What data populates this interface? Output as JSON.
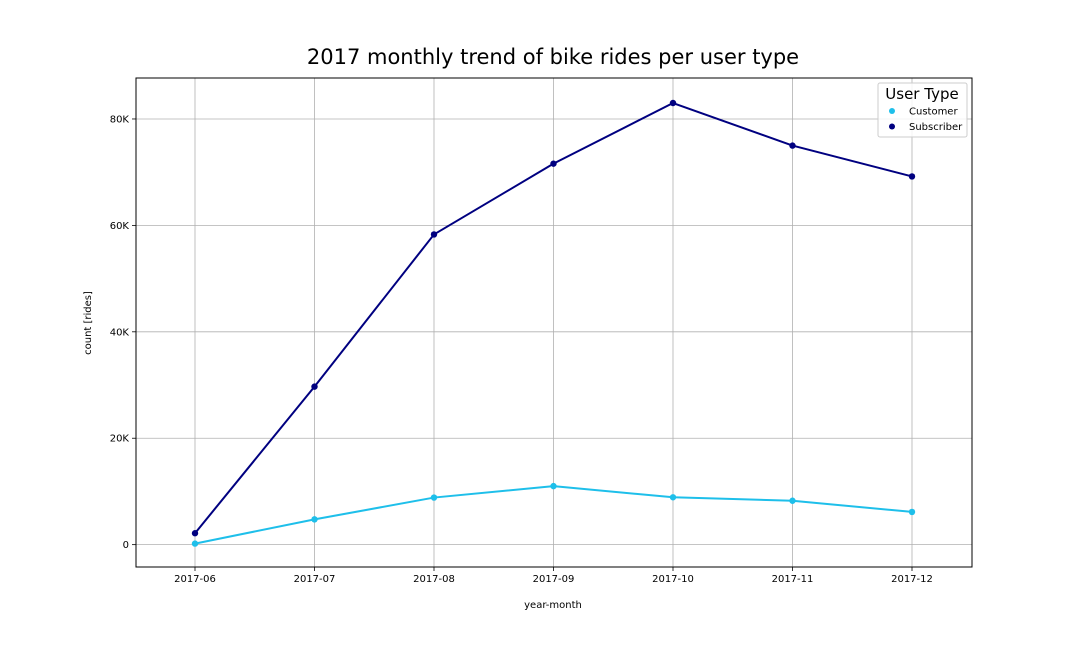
{
  "chart_data": {
    "type": "line",
    "title": "2017 monthly trend of bike rides per user type",
    "xlabel": "year-month",
    "ylabel": "count [rides]",
    "categories": [
      "2017-06",
      "2017-07",
      "2017-08",
      "2017-09",
      "2017-10",
      "2017-11",
      "2017-12"
    ],
    "y_ticks": [
      0,
      20000,
      40000,
      60000,
      80000
    ],
    "y_tick_labels": [
      "0",
      "20K",
      "40K",
      "60K",
      "80K"
    ],
    "ylim": [
      -4200,
      87700
    ],
    "grid": true,
    "legend": {
      "title": "User Type",
      "placement": "top-right"
    },
    "series": [
      {
        "name": "Customer",
        "color": "#1ebfea",
        "values": [
          200,
          4750,
          8850,
          11000,
          8900,
          8250,
          6150
        ]
      },
      {
        "name": "Subscriber",
        "color": "#000080",
        "values": [
          2150,
          29700,
          58300,
          71600,
          83000,
          75000,
          69200
        ]
      }
    ]
  }
}
